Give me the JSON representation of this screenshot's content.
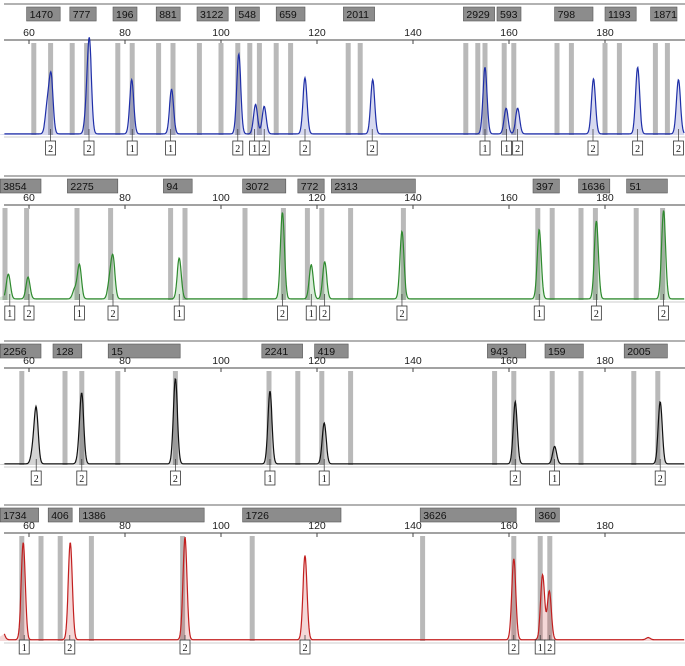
{
  "chart_data": [
    {
      "type": "line",
      "title": "",
      "xlabel": "",
      "ylabel": "",
      "color": "#1f2fa8",
      "xlim": [
        53,
        195
      ],
      "x_ticks": [
        60,
        80,
        100,
        120,
        140,
        160,
        180
      ],
      "x_tick_labels": [
        "60",
        "80",
        "100",
        "120",
        "140",
        "160",
        "180"
      ],
      "bins": [
        {
          "label": "1470",
          "x0": 59.5,
          "x1": 66.5
        },
        {
          "label": "777",
          "x0": 68.5,
          "x1": 74
        },
        {
          "label": "196",
          "x0": 77.5,
          "x1": 82.5
        },
        {
          "label": "881",
          "x0": 86.5,
          "x1": 91.5
        },
        {
          "label": "3122",
          "x0": 95,
          "x1": 101.5
        },
        {
          "label": "548",
          "x0": 103,
          "x1": 108
        },
        {
          "label": "659",
          "x0": 111.5,
          "x1": 117.5
        },
        {
          "label": "2011",
          "x0": 125.5,
          "x1": 132
        },
        {
          "label": "2929",
          "x0": 150.5,
          "x1": 157
        },
        {
          "label": "593",
          "x0": 157.5,
          "x1": 162.5
        },
        {
          "label": "798",
          "x0": 169.5,
          "x1": 177.5
        },
        {
          "label": "1193",
          "x0": 180,
          "x1": 186.5
        },
        {
          "label": "1871",
          "x0": 189.5,
          "x1": 195
        }
      ],
      "marker_bars": [
        61,
        64.5,
        69,
        72,
        78.5,
        81.5,
        87,
        90,
        95.5,
        100,
        103.5,
        106,
        108,
        111.5,
        114.5,
        126.5,
        129,
        151,
        153.5,
        155,
        159,
        161,
        170,
        173,
        180,
        183,
        190.5,
        193
      ],
      "peaks": [
        {
          "x": 63.8,
          "y": 0.28
        },
        {
          "x": 64.6,
          "y": 0.6
        },
        {
          "x": 72.0,
          "y": 0.22
        },
        {
          "x": 72.6,
          "y": 0.93
        },
        {
          "x": 81.4,
          "y": 0.57
        },
        {
          "x": 89.7,
          "y": 0.47
        },
        {
          "x": 103.7,
          "y": 0.84
        },
        {
          "x": 107.2,
          "y": 0.31
        },
        {
          "x": 109.0,
          "y": 0.29
        },
        {
          "x": 117.5,
          "y": 0.59
        },
        {
          "x": 131.6,
          "y": 0.57
        },
        {
          "x": 155.0,
          "y": 0.7
        },
        {
          "x": 159.4,
          "y": 0.27
        },
        {
          "x": 161.8,
          "y": 0.27
        },
        {
          "x": 177.6,
          "y": 0.58
        },
        {
          "x": 186.8,
          "y": 0.7
        },
        {
          "x": 195.3,
          "y": 0.57
        }
      ],
      "calls": [
        {
          "x": 64.5,
          "label": "2"
        },
        {
          "x": 72.5,
          "label": "2"
        },
        {
          "x": 81.5,
          "label": "1"
        },
        {
          "x": 89.5,
          "label": "1"
        },
        {
          "x": 103.5,
          "label": "2"
        },
        {
          "x": 107.0,
          "label": "1"
        },
        {
          "x": 109.0,
          "label": "2"
        },
        {
          "x": 117.5,
          "label": "2"
        },
        {
          "x": 131.5,
          "label": "2"
        },
        {
          "x": 155.0,
          "label": "1"
        },
        {
          "x": 159.5,
          "label": "1"
        },
        {
          "x": 161.8,
          "label": "2"
        },
        {
          "x": 177.5,
          "label": "2"
        },
        {
          "x": 186.8,
          "label": "2"
        },
        {
          "x": 195.3,
          "label": "2"
        }
      ]
    },
    {
      "type": "line",
      "title": "",
      "xlabel": "",
      "ylabel": "",
      "color": "#2e8a2e",
      "xlim": [
        53,
        195
      ],
      "x_ticks": [
        60,
        80,
        100,
        120,
        140,
        160,
        180
      ],
      "x_tick_labels": [
        "60",
        "80",
        "100",
        "120",
        "140",
        "160",
        "180"
      ],
      "bins": [
        {
          "label": "3854",
          "x0": 54,
          "x1": 62.5
        },
        {
          "label": "2275",
          "x0": 68,
          "x1": 78.5
        },
        {
          "label": "94",
          "x0": 88,
          "x1": 94
        },
        {
          "label": "3072",
          "x0": 104.5,
          "x1": 113.5
        },
        {
          "label": "772",
          "x0": 116,
          "x1": 121.5
        },
        {
          "label": "2313",
          "x0": 123,
          "x1": 140.5
        },
        {
          "label": "397",
          "x0": 165,
          "x1": 170.5
        },
        {
          "label": "1636",
          "x0": 174.5,
          "x1": 181
        },
        {
          "label": "51",
          "x0": 184.5,
          "x1": 193
        }
      ],
      "marker_bars": [
        55,
        59.5,
        70,
        77,
        89.5,
        92.5,
        105,
        113,
        118,
        121,
        127,
        138,
        166,
        169,
        175,
        178,
        186.5,
        192
      ],
      "peaks": [
        {
          "x": 55.7,
          "y": 0.26
        },
        {
          "x": 59.8,
          "y": 0.23
        },
        {
          "x": 69.5,
          "y": 0.1
        },
        {
          "x": 70.5,
          "y": 0.36
        },
        {
          "x": 76.8,
          "y": 0.17
        },
        {
          "x": 77.5,
          "y": 0.42
        },
        {
          "x": 91.3,
          "y": 0.43
        },
        {
          "x": 112.8,
          "y": 0.91
        },
        {
          "x": 118.8,
          "y": 0.36
        },
        {
          "x": 121.6,
          "y": 0.39
        },
        {
          "x": 137.7,
          "y": 0.71
        },
        {
          "x": 166.3,
          "y": 0.73
        },
        {
          "x": 178.2,
          "y": 0.82
        },
        {
          "x": 192.2,
          "y": 0.93
        }
      ],
      "calls": [
        {
          "x": 56.0,
          "label": "1"
        },
        {
          "x": 60.0,
          "label": "2"
        },
        {
          "x": 70.5,
          "label": "1"
        },
        {
          "x": 77.5,
          "label": "2"
        },
        {
          "x": 91.3,
          "label": "1"
        },
        {
          "x": 112.8,
          "label": "2"
        },
        {
          "x": 118.8,
          "label": "1"
        },
        {
          "x": 121.6,
          "label": "2"
        },
        {
          "x": 137.7,
          "label": "2"
        },
        {
          "x": 166.3,
          "label": "1"
        },
        {
          "x": 178.2,
          "label": "2"
        },
        {
          "x": 192.2,
          "label": "2"
        }
      ]
    },
    {
      "type": "line",
      "title": "",
      "xlabel": "",
      "ylabel": "",
      "color": "#111111",
      "xlim": [
        53,
        195
      ],
      "x_ticks": [
        60,
        80,
        100,
        120,
        140,
        160,
        180
      ],
      "x_tick_labels": [
        "60",
        "80",
        "100",
        "120",
        "140",
        "160",
        "180"
      ],
      "bins": [
        {
          "label": "2256",
          "x0": 54,
          "x1": 62.5
        },
        {
          "label": "128",
          "x0": 65,
          "x1": 71
        },
        {
          "label": "15",
          "x0": 76.5,
          "x1": 91.5
        },
        {
          "label": "2241",
          "x0": 108.5,
          "x1": 117
        },
        {
          "label": "419",
          "x0": 119.5,
          "x1": 126.5
        },
        {
          "label": "943",
          "x0": 155.5,
          "x1": 163.5
        },
        {
          "label": "159",
          "x0": 167.5,
          "x1": 175.5
        },
        {
          "label": "2005",
          "x0": 184,
          "x1": 193
        }
      ],
      "marker_bars": [
        58.5,
        67.5,
        71,
        78.5,
        90.5,
        110,
        116,
        121,
        127,
        157,
        161,
        169,
        175,
        186,
        191
      ],
      "peaks": [
        {
          "x": 60.8,
          "y": 0.12
        },
        {
          "x": 61.5,
          "y": 0.56
        },
        {
          "x": 70.5,
          "y": 0.1
        },
        {
          "x": 71.0,
          "y": 0.68
        },
        {
          "x": 90.5,
          "y": 0.88
        },
        {
          "x": 110.2,
          "y": 0.75
        },
        {
          "x": 121.5,
          "y": 0.42
        },
        {
          "x": 161.3,
          "y": 0.64
        },
        {
          "x": 169.5,
          "y": 0.18
        },
        {
          "x": 191.5,
          "y": 0.64
        }
      ],
      "calls": [
        {
          "x": 61.5,
          "label": "2"
        },
        {
          "x": 71.0,
          "label": "2"
        },
        {
          "x": 90.5,
          "label": "2"
        },
        {
          "x": 110.2,
          "label": "1"
        },
        {
          "x": 121.5,
          "label": "1"
        },
        {
          "x": 161.3,
          "label": "2"
        },
        {
          "x": 169.5,
          "label": "1"
        },
        {
          "x": 191.5,
          "label": "2"
        }
      ]
    },
    {
      "type": "line",
      "title": "",
      "xlabel": "",
      "ylabel": "",
      "color": "#c21f1f",
      "xlim": [
        53,
        195
      ],
      "x_ticks": [
        60,
        80,
        100,
        120,
        140,
        160,
        180
      ],
      "x_tick_labels": [
        "60",
        "80",
        "100",
        "120",
        "140",
        "160",
        "180"
      ],
      "bins": [
        {
          "label": "1734",
          "x0": 54,
          "x1": 62
        },
        {
          "label": "406",
          "x0": 64,
          "x1": 69
        },
        {
          "label": "1386",
          "x0": 70.5,
          "x1": 96.5
        },
        {
          "label": "1726",
          "x0": 104.5,
          "x1": 125
        },
        {
          "label": "3626",
          "x0": 141.5,
          "x1": 161.5
        },
        {
          "label": "360",
          "x0": 165.5,
          "x1": 170.5
        }
      ],
      "marker_bars": [
        58.5,
        62.5,
        66.5,
        73,
        92,
        106.5,
        142,
        161,
        166.5,
        168.5
      ],
      "peaks": [
        {
          "x": 54.5,
          "y": 0.08
        },
        {
          "x": 58.8,
          "y": 0.9
        },
        {
          "x": 68.6,
          "y": 0.9
        },
        {
          "x": 92.5,
          "y": 0.95
        },
        {
          "x": 117.5,
          "y": 0.78
        },
        {
          "x": 161.0,
          "y": 0.75
        },
        {
          "x": 167.0,
          "y": 0.6
        },
        {
          "x": 168.4,
          "y": 0.45
        },
        {
          "x": 189.0,
          "y": 0.02
        }
      ],
      "calls": [
        {
          "x": 59.0,
          "label": "1"
        },
        {
          "x": 68.5,
          "label": "2"
        },
        {
          "x": 92.5,
          "label": "2"
        },
        {
          "x": 117.5,
          "label": "2"
        },
        {
          "x": 161.0,
          "label": "2"
        },
        {
          "x": 166.5,
          "label": "1"
        },
        {
          "x": 168.5,
          "label": "2"
        }
      ]
    }
  ]
}
